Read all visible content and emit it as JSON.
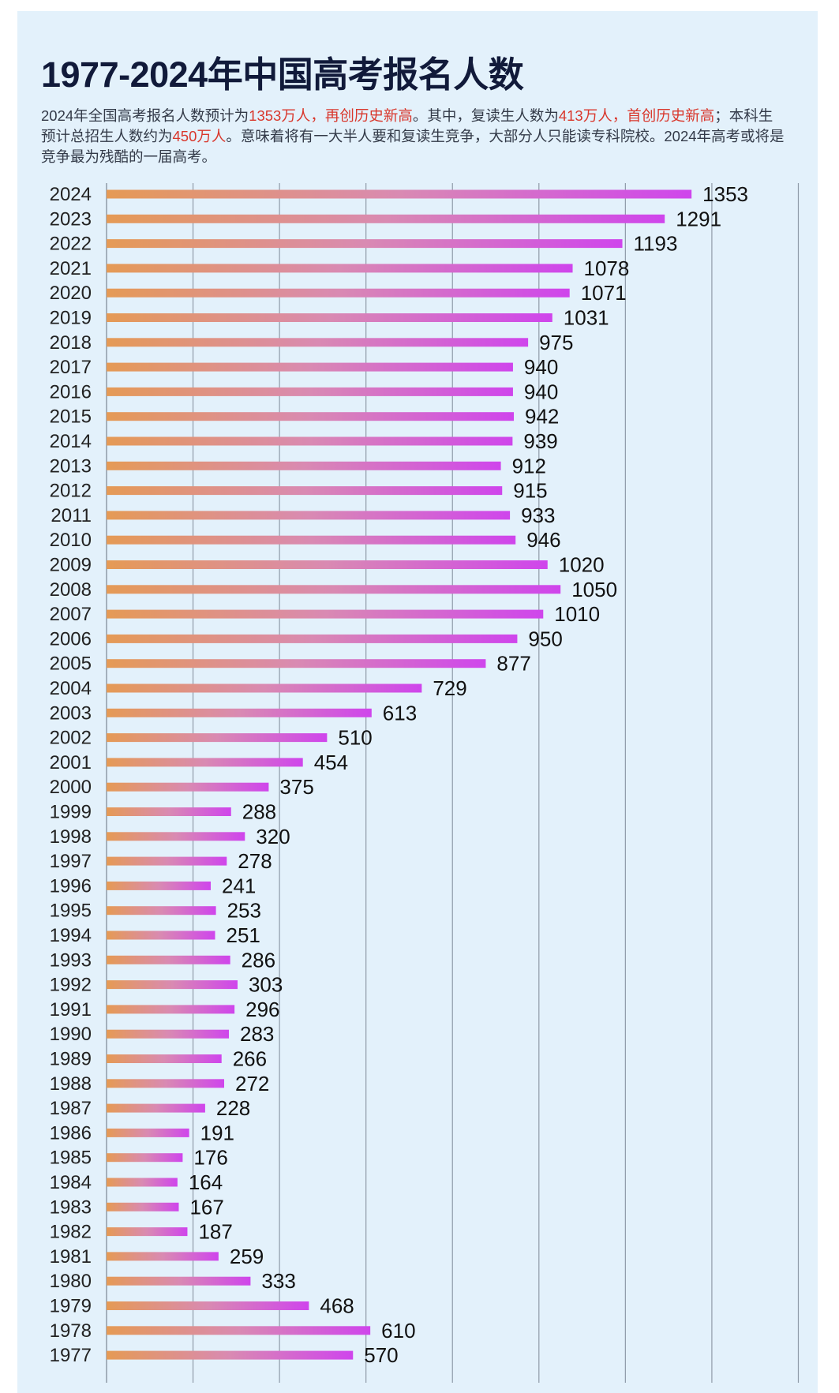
{
  "title": "1977-2024年中国高考报名人数",
  "subtitle": {
    "p1": "2024年全国高考报名人数预计为",
    "h1": "1353万人，再创历史新高",
    "p2": "。其中，复读生人数为",
    "h2": "413万人，首创历史新高",
    "p3": "；本科生预计总招生人数约为",
    "h3": "450万人",
    "p4": "。意味着将有一大半人要和复读生竞争，大部分人只能读专科院校。2024年高考或将是竞争最为残酷的一届高考。"
  },
  "colors": {
    "background": "#e3f1fb",
    "bar_start": "#e59a55",
    "bar_mid": "#d98ab2",
    "bar_end": "#cf45ec",
    "grid": "#8f9ba8",
    "highlight": "#d9372c"
  },
  "chart_data": {
    "type": "bar",
    "orientation": "horizontal",
    "unit": "万人",
    "xlim": [
      0,
      1600
    ],
    "grid_step": 200,
    "grid": true,
    "categories": [
      "2024",
      "2023",
      "2022",
      "2021",
      "2020",
      "2019",
      "2018",
      "2017",
      "2016",
      "2015",
      "2014",
      "2013",
      "2012",
      "2011",
      "2010",
      "2009",
      "2008",
      "2007",
      "2006",
      "2005",
      "2004",
      "2003",
      "2002",
      "2001",
      "2000",
      "1999",
      "1998",
      "1997",
      "1996",
      "1995",
      "1994",
      "1993",
      "1992",
      "1991",
      "1990",
      "1989",
      "1988",
      "1987",
      "1986",
      "1985",
      "1984",
      "1983",
      "1982",
      "1981",
      "1980",
      "1979",
      "1978",
      "1977"
    ],
    "values": [
      1353,
      1291,
      1193,
      1078,
      1071,
      1031,
      975,
      940,
      940,
      942,
      939,
      912,
      915,
      933,
      946,
      1020,
      1050,
      1010,
      950,
      877,
      729,
      613,
      510,
      454,
      375,
      288,
      320,
      278,
      241,
      253,
      251,
      286,
      303,
      296,
      283,
      266,
      272,
      228,
      191,
      176,
      164,
      167,
      187,
      259,
      333,
      468,
      610,
      570
    ]
  }
}
